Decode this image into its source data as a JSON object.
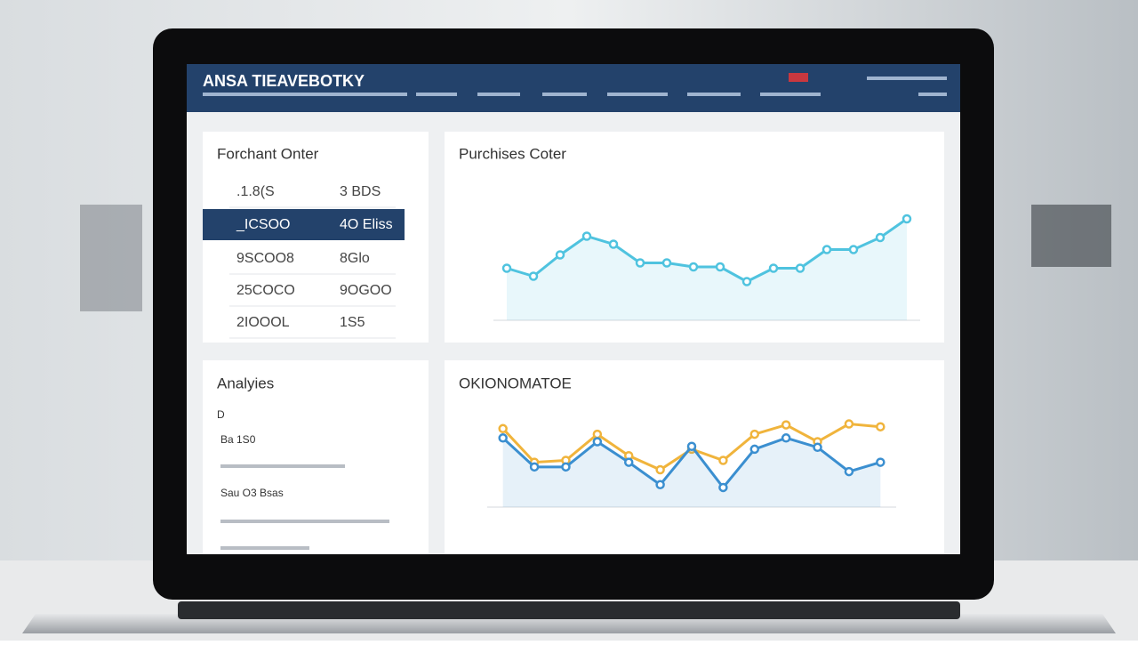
{
  "header": {
    "title": "ANSA TIEAVEBOTKY"
  },
  "order_panel": {
    "title": "Forchant Onter",
    "rows": [
      [
        ".1.8(S",
        "3 BDS"
      ],
      [
        "_ICSOO",
        "4O Eliss"
      ],
      [
        "9SCOO8",
        "8Glo"
      ],
      [
        "25COCO",
        "9OGOO"
      ],
      [
        "2IOOOL",
        "1S5"
      ]
    ]
  },
  "analytics": {
    "title": "Analyies",
    "items": [
      "D",
      "Ba 1S0",
      "Sau O3 Bsas"
    ]
  },
  "chart_data": [
    {
      "type": "line",
      "title": "Purchises Coter",
      "categories": [
        null,
        null,
        null,
        null,
        null,
        null,
        null,
        null,
        null,
        null,
        null,
        null,
        null,
        null,
        null,
        null
      ],
      "series": [
        {
          "color": "#4fc3df",
          "values": [
            39,
            33,
            49,
            63,
            57,
            43,
            43,
            40,
            40,
            29,
            39,
            39,
            53,
            53,
            62,
            76
          ]
        }
      ],
      "ylim": [
        0,
        100
      ],
      "area": true
    },
    {
      "type": "line",
      "title": "OKIONOMATOE",
      "categories": [
        null,
        null,
        null,
        null,
        null,
        null,
        null,
        null,
        null,
        null,
        null,
        null,
        null
      ],
      "series": [
        {
          "color": "#f0b43c",
          "values": [
            84,
            48,
            50,
            78,
            55,
            40,
            62,
            50,
            78,
            88,
            70,
            89,
            86
          ]
        },
        {
          "color": "#3b8fd0",
          "values": [
            74,
            43,
            43,
            70,
            48,
            24,
            65,
            21,
            62,
            74,
            64,
            38,
            48
          ]
        }
      ],
      "ylim": [
        0,
        100
      ],
      "area": true
    }
  ]
}
